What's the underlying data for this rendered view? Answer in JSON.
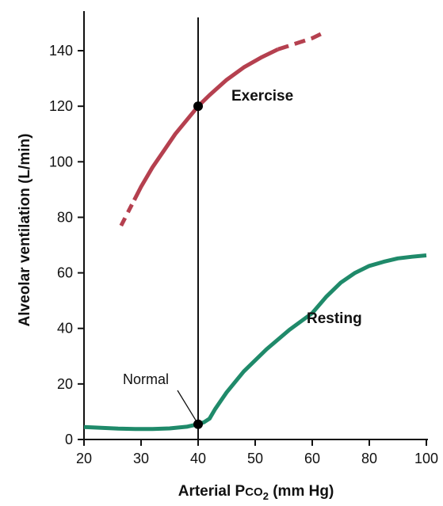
{
  "chart_data": {
    "type": "line",
    "xlabel_main": "Arterial P",
    "xlabel_sub": "CO",
    "xlabel_subscript": "2",
    "xlabel_tail": " (mm Hg)",
    "ylabel": "Alveolar ventilation (L/min)",
    "x_ticks": [
      "20",
      "30",
      "40",
      "50",
      "60",
      "80",
      "100"
    ],
    "y_ticks": [
      0,
      20,
      40,
      60,
      80,
      100,
      120,
      140
    ],
    "ylim": [
      0,
      150
    ],
    "series": [
      {
        "name": "Exercise",
        "color": "#b5404f",
        "x": [
          26.5,
          28,
          30,
          32,
          34,
          36,
          38,
          40,
          42,
          45,
          48,
          51,
          54,
          57,
          60,
          63
        ],
        "y": [
          77,
          83,
          91,
          98,
          104,
          110,
          115,
          120,
          124,
          129.5,
          134,
          137.5,
          140.5,
          142.5,
          144.5,
          146
        ],
        "dashed_below_x": 28.8,
        "dashed_above_x": 54
      },
      {
        "name": "Resting",
        "color": "#1f8a6a",
        "x": [
          20,
          23,
          26,
          29,
          32,
          35,
          38,
          40,
          41,
          42,
          43,
          45,
          48,
          52,
          56,
          60,
          65,
          70,
          75,
          80,
          85,
          90,
          95,
          100
        ],
        "y": [
          4.5,
          4.2,
          3.9,
          3.8,
          3.8,
          4.0,
          4.6,
          5.5,
          6.2,
          7.5,
          11,
          17,
          24.5,
          32.5,
          39.5,
          45.5,
          51.5,
          56.5,
          60,
          62.5,
          64,
          65.2,
          65.8,
          66.3
        ]
      }
    ],
    "annotations": {
      "normal_label": "Normal",
      "normal_point": {
        "x": 40,
        "y": 5.5
      },
      "exercise_point": {
        "x": 40,
        "y": 120
      },
      "vertical_line_x": 40
    }
  }
}
